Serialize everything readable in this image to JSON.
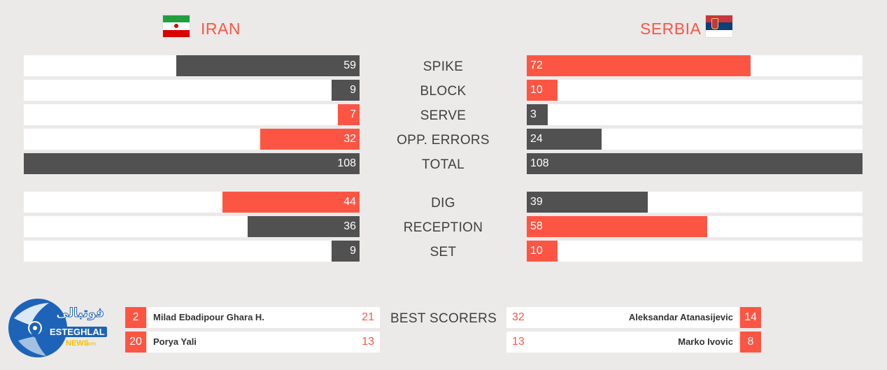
{
  "teams": {
    "left": {
      "name": "IRAN",
      "flag_colors": [
        "#239f40",
        "#ffffff",
        "#da0000"
      ],
      "emblem_color": "#da0000"
    },
    "right": {
      "name": "SERBIA",
      "flag_colors": [
        "#c6363c",
        "#0c4076",
        "#ffffff"
      ],
      "emblem_color": "#c6363c"
    }
  },
  "colors": {
    "accent": "#fd5543",
    "dark": "#515151",
    "track": "#ffffff",
    "background": "#ece9e9",
    "label": "#404040"
  },
  "stats": [
    {
      "label": "SPIKE",
      "left": 59,
      "right": 72,
      "left_color": "dark",
      "right_color": "red"
    },
    {
      "label": "BLOCK",
      "left": 9,
      "right": 10,
      "left_color": "dark",
      "right_color": "red"
    },
    {
      "label": "SERVE",
      "left": 7,
      "right": 3,
      "left_color": "red",
      "right_color": "dark"
    },
    {
      "label": "OPP. ERRORS",
      "left": 32,
      "right": 24,
      "left_color": "red",
      "right_color": "dark"
    },
    {
      "label": "TOTAL",
      "left": 108,
      "right": 108,
      "left_color": "dark",
      "right_color": "dark"
    },
    {
      "label": "DIG",
      "left": 44,
      "right": 39,
      "left_color": "red",
      "right_color": "dark"
    },
    {
      "label": "RECEPTION",
      "left": 36,
      "right": 58,
      "left_color": "dark",
      "right_color": "red"
    },
    {
      "label": "SET",
      "left": 9,
      "right": 10,
      "left_color": "dark",
      "right_color": "red"
    }
  ],
  "best_scorers": {
    "label": "BEST SCORERS",
    "left": [
      {
        "number": "2",
        "name": "Milad Ebadipour Ghara H.",
        "points": "21"
      },
      {
        "number": "20",
        "name": "Porya Yali",
        "points": "13"
      }
    ],
    "right": [
      {
        "number": "14",
        "name": "Aleksandar Atanasijevic",
        "points": "32"
      },
      {
        "number": "8",
        "name": "Marko Ivovic",
        "points": "13"
      }
    ]
  },
  "logo": {
    "text_arabic": "فوتبالی",
    "text_main": "ESTEGHLAL",
    "text_sub": "NEWS",
    "text_domain": ".com"
  }
}
